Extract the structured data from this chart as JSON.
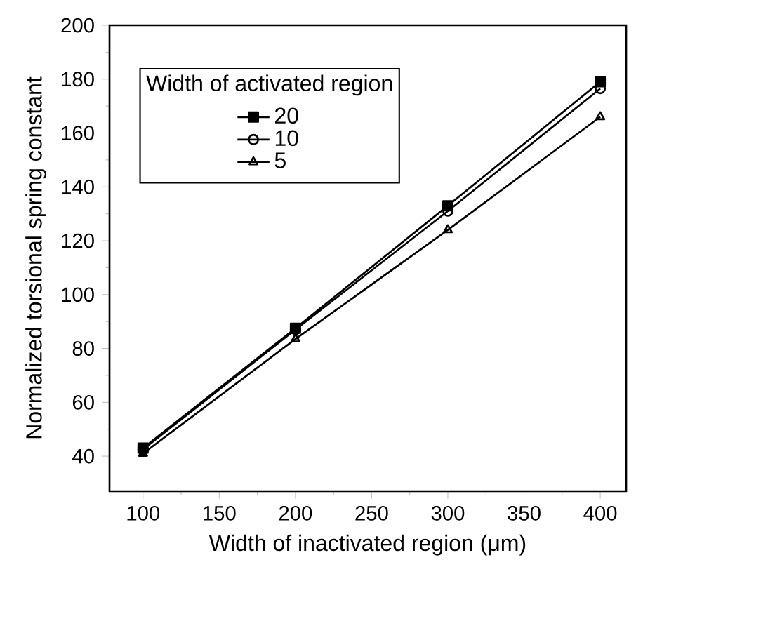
{
  "chart_data": {
    "type": "line",
    "xlabel": "Width of inactivated region (μm)",
    "ylabel": "Normalized torsional spring constant",
    "legend_title": "Width of activated region",
    "x": [
      100,
      200,
      300,
      400
    ],
    "series": [
      {
        "name": "20",
        "color": "#000000",
        "marker": "square",
        "values": [
          43,
          87.5,
          133,
          179
        ]
      },
      {
        "name": "10",
        "color": "#000000",
        "marker": "circle",
        "values": [
          42.5,
          87,
          131,
          176.5
        ]
      },
      {
        "name": "5",
        "color": "#000000",
        "marker": "triangle",
        "values": [
          41,
          83.5,
          124,
          166
        ]
      }
    ],
    "xlim": [
      78,
      417
    ],
    "ylim": [
      27,
      200
    ],
    "xticks": [
      100,
      150,
      200,
      250,
      300,
      350,
      400
    ],
    "yticks": [
      40,
      60,
      80,
      100,
      120,
      140,
      160,
      180,
      200
    ],
    "legend": "top left",
    "grid": false,
    "line_style": "solid"
  }
}
